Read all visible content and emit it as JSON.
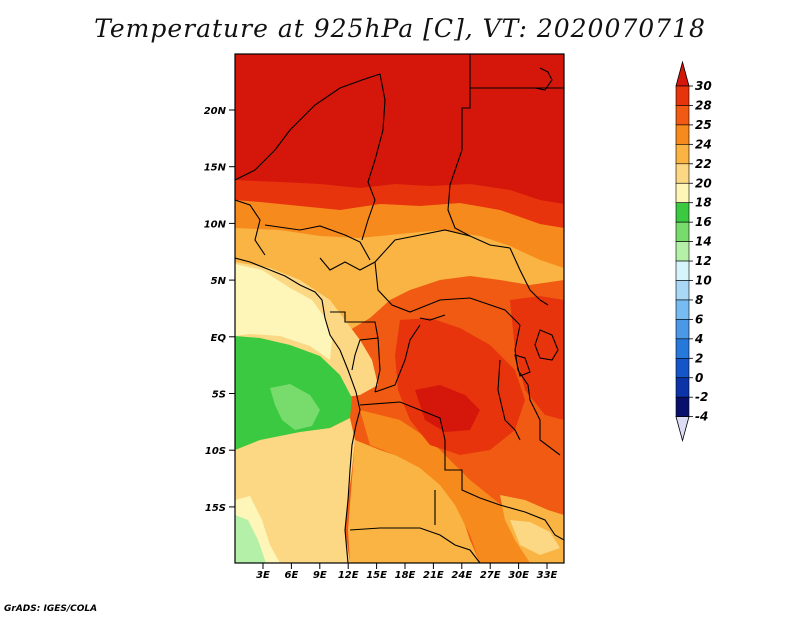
{
  "title": "Temperature at 925hPa [C], VT: 2020070718",
  "credit": "GrADS: IGES/COLA",
  "map": {
    "lon_ticks": [
      "3E",
      "6E",
      "9E",
      "12E",
      "15E",
      "18E",
      "21E",
      "24E",
      "27E",
      "30E",
      "33E"
    ],
    "lat_ticks": [
      "20N",
      "15N",
      "10N",
      "5N",
      "EQ",
      "5S",
      "10S",
      "15S"
    ]
  },
  "colorbar": {
    "labels": [
      "30",
      "28",
      "25",
      "24",
      "22",
      "20",
      "18",
      "16",
      "14",
      "12",
      "10",
      "8",
      "6",
      "4",
      "2",
      "0",
      "-2",
      "-4"
    ],
    "colors": [
      "#d4170a",
      "#e8340c",
      "#f05a12",
      "#f78a1c",
      "#f9b443",
      "#fcd784",
      "#fef6b8",
      "#3ac940",
      "#78dc6c",
      "#b4f0a8",
      "#d6f5fb",
      "#a9d8f7",
      "#76bbf1",
      "#4b98e6",
      "#2678db",
      "#1455c7",
      "#0c33a7",
      "#08106c",
      "#dcdcf4"
    ]
  },
  "field_colors": {
    "sahara": "#d4170a",
    "band_28": "#e8340c",
    "band_25": "#f05a12",
    "band_24": "#f78a1c",
    "band_22": "#f9b443",
    "band_20": "#fcd784",
    "band_18": "#fef6b8",
    "ocean_green": "#3ac940",
    "ocean_light_green": "#78dc6c",
    "ocean_pale": "#b4f0a8"
  }
}
